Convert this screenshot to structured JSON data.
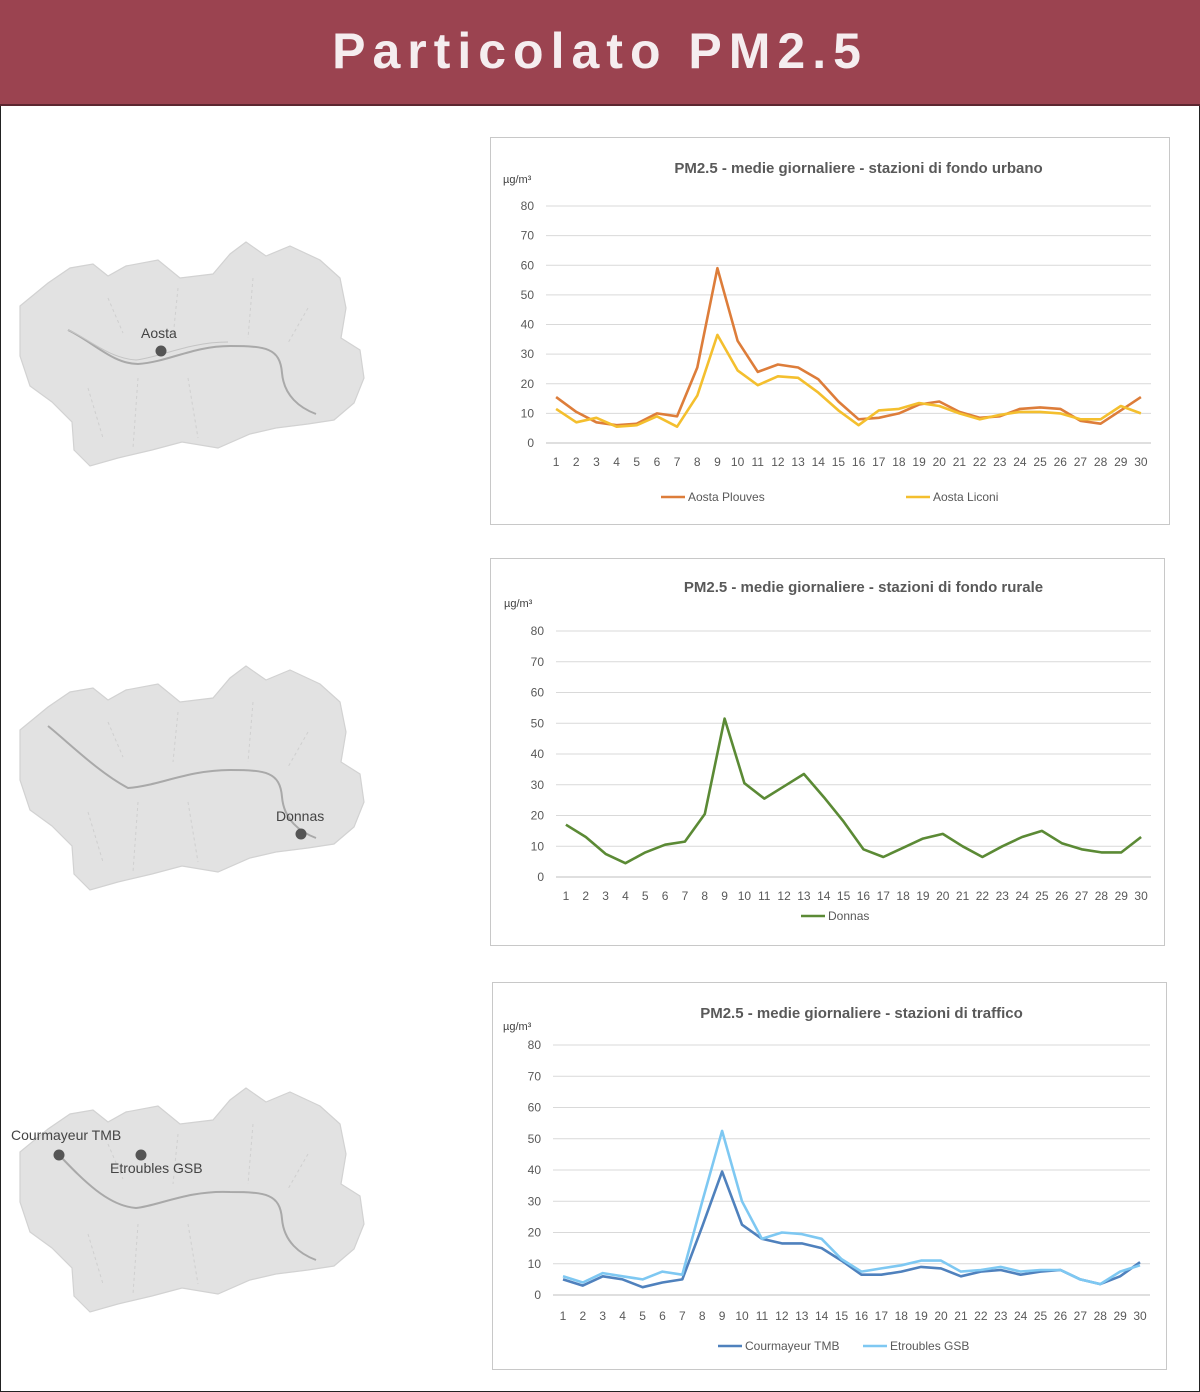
{
  "header": {
    "title": "Particolato PM2.5"
  },
  "colors": {
    "header_bg": "#9b4350",
    "header_text": "#f5edef",
    "grid": "#d9d9d9",
    "axis_text": "#595959"
  },
  "maps": [
    {
      "stations": [
        {
          "label": "Aosta"
        }
      ]
    },
    {
      "stations": [
        {
          "label": "Donnas"
        }
      ]
    },
    {
      "stations": [
        {
          "label": "Courmayeur TMB"
        },
        {
          "label": "Etroubles GSB"
        }
      ]
    }
  ],
  "chart_data": [
    {
      "type": "line",
      "title": "PM2.5 - medie giornaliere - stazioni di fondo urbano",
      "ylabel": "µg/m³",
      "xlabel": "",
      "ylim": [
        0,
        80
      ],
      "yticks": [
        0,
        10,
        20,
        30,
        40,
        50,
        60,
        70,
        80
      ],
      "categories": [
        "1",
        "2",
        "3",
        "4",
        "5",
        "6",
        "7",
        "8",
        "9",
        "10",
        "11",
        "12",
        "13",
        "14",
        "15",
        "16",
        "17",
        "18",
        "19",
        "20",
        "21",
        "22",
        "23",
        "24",
        "25",
        "26",
        "27",
        "28",
        "29",
        "30"
      ],
      "series": [
        {
          "name": "Aosta Plouves",
          "color": "#dd7d3a",
          "values": [
            15.5,
            10.5,
            7,
            6,
            6.5,
            10,
            9,
            25.5,
            59,
            34.5,
            24,
            26.5,
            25.5,
            21.5,
            14,
            8,
            8.5,
            10,
            13,
            14,
            10.5,
            8.5,
            9,
            11.5,
            12,
            11.5,
            7.5,
            6.5,
            11,
            15.5
          ]
        },
        {
          "name": "Aosta Liconi",
          "color": "#f4bf2e",
          "values": [
            11.5,
            7,
            8.5,
            5.5,
            6,
            9,
            5.5,
            16,
            36.5,
            24.5,
            19.5,
            22.5,
            22,
            17,
            11,
            6,
            11,
            11.5,
            13.5,
            12.5,
            10,
            8,
            9.5,
            10.5,
            10.5,
            10,
            8,
            8,
            12.5,
            10
          ]
        }
      ],
      "legend": "bottom"
    },
    {
      "type": "line",
      "title": "PM2.5 - medie giornaliere - stazioni di fondo rurale",
      "ylabel": "µg/m³",
      "xlabel": "",
      "ylim": [
        0,
        80
      ],
      "yticks": [
        0,
        10,
        20,
        30,
        40,
        50,
        60,
        70,
        80
      ],
      "categories": [
        "1",
        "2",
        "3",
        "4",
        "5",
        "6",
        "7",
        "8",
        "9",
        "10",
        "11",
        "12",
        "13",
        "14",
        "15",
        "16",
        "17",
        "18",
        "19",
        "20",
        "21",
        "22",
        "23",
        "24",
        "25",
        "26",
        "27",
        "28",
        "29",
        "30"
      ],
      "series": [
        {
          "name": "Donnas",
          "color": "#5b8a35",
          "values": [
            17,
            13,
            7.5,
            4.5,
            8,
            10.5,
            11.5,
            20.5,
            51.5,
            30.5,
            25.5,
            29.5,
            33.5,
            26,
            18,
            9,
            6.5,
            9.5,
            12.5,
            14,
            10,
            6.5,
            10,
            13,
            15,
            11,
            9,
            8,
            8,
            13
          ]
        }
      ],
      "legend": "bottom"
    },
    {
      "type": "line",
      "title": "PM2.5 - medie giornaliere - stazioni di traffico",
      "ylabel": "µg/m³",
      "xlabel": "",
      "ylim": [
        0,
        80
      ],
      "yticks": [
        0,
        10,
        20,
        30,
        40,
        50,
        60,
        70,
        80
      ],
      "categories": [
        "1",
        "2",
        "3",
        "4",
        "5",
        "6",
        "7",
        "8",
        "9",
        "10",
        "11",
        "12",
        "13",
        "14",
        "15",
        "16",
        "17",
        "18",
        "19",
        "20",
        "21",
        "22",
        "23",
        "24",
        "25",
        "26",
        "27",
        "28",
        "29",
        "30"
      ],
      "series": [
        {
          "name": "Courmayeur TMB",
          "color": "#4f81bd",
          "values": [
            5,
            3,
            6,
            5,
            2.5,
            4,
            5,
            22,
            39.5,
            22.5,
            18,
            16.5,
            16.5,
            15,
            11,
            6.5,
            6.5,
            7.5,
            9,
            8.5,
            6,
            7.5,
            8,
            6.5,
            7.5,
            8,
            5,
            3.5,
            6,
            10.5
          ]
        },
        {
          "name": "Etroubles GSB",
          "color": "#7ec8f2",
          "values": [
            6,
            4,
            7,
            6,
            5,
            7.5,
            6.5,
            30,
            52.5,
            30,
            18,
            20,
            19.5,
            18,
            11.5,
            7.5,
            8.5,
            9.5,
            11,
            11,
            7.5,
            8,
            9,
            7.5,
            8,
            8,
            5,
            3.5,
            7.5,
            9.5
          ]
        }
      ],
      "legend": "bottom"
    }
  ]
}
